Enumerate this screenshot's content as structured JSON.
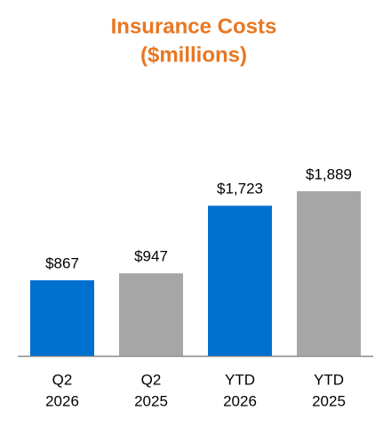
{
  "chart_data": {
    "type": "bar",
    "title": "Insurance Costs",
    "subtitle": "($millions)",
    "categories": [
      [
        "Q2",
        "2026"
      ],
      [
        "Q2",
        "2025"
      ],
      [
        "YTD",
        "2026"
      ],
      [
        "YTD",
        "2025"
      ]
    ],
    "values": [
      867,
      947,
      1723,
      1889
    ],
    "value_labels": [
      "$867",
      "$947",
      "$1,723",
      "$1,889"
    ],
    "colors": [
      "#0070cf",
      "#a6a6a6",
      "#0070cf",
      "#a6a6a6"
    ]
  }
}
